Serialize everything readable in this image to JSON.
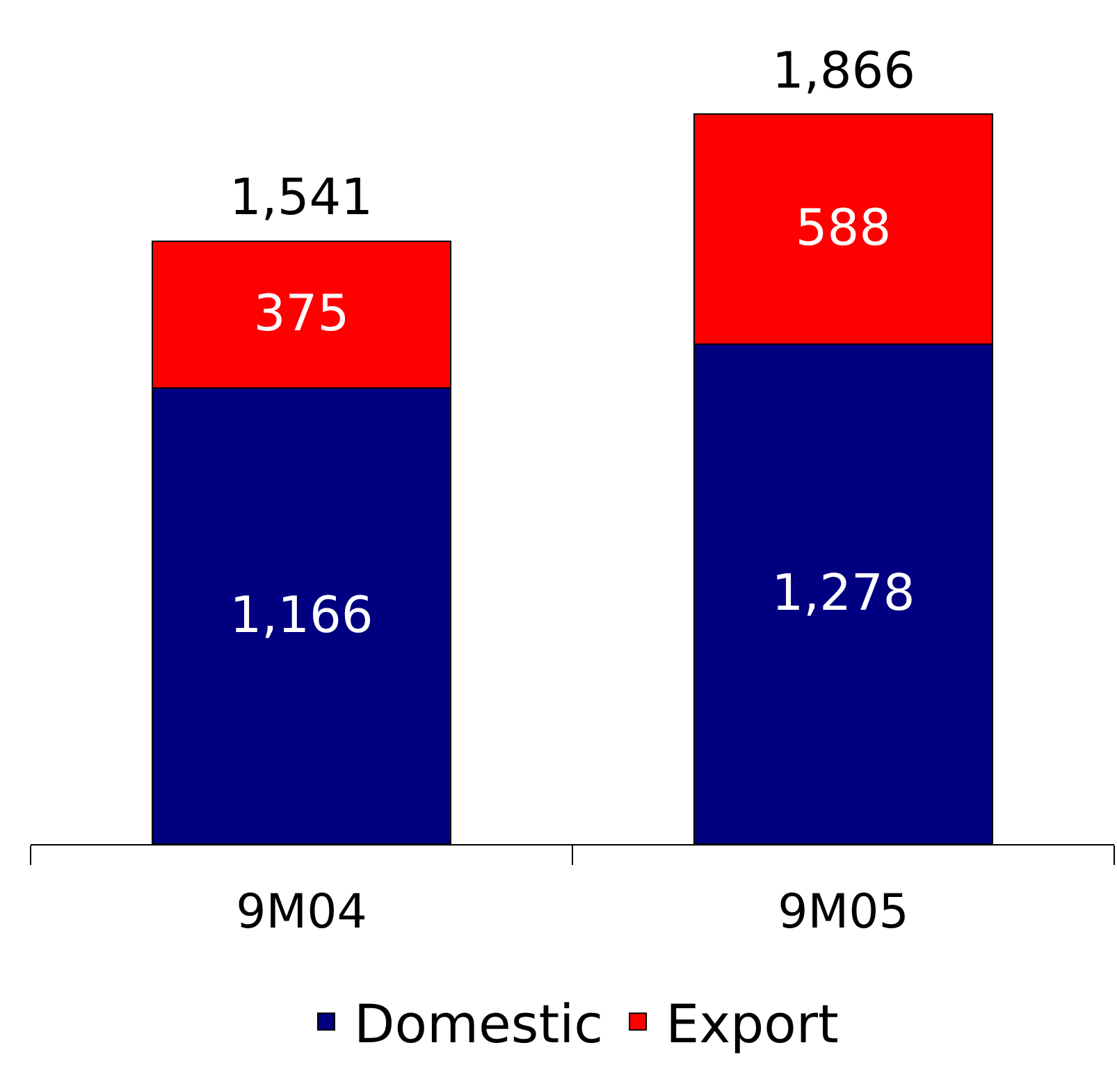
{
  "chart_data": {
    "type": "bar",
    "stacked": true,
    "categories": [
      "9M04",
      "9M05"
    ],
    "series": [
      {
        "name": "Domestic",
        "color": "#000080",
        "values": [
          1166,
          1278
        ],
        "value_labels": [
          "1,166",
          "1,278"
        ]
      },
      {
        "name": "Export",
        "color": "#ff0000",
        "values": [
          375,
          588
        ],
        "value_labels": [
          "375",
          "588"
        ]
      }
    ],
    "totals": [
      "1,541",
      "1,866"
    ],
    "legend": "bottom"
  }
}
